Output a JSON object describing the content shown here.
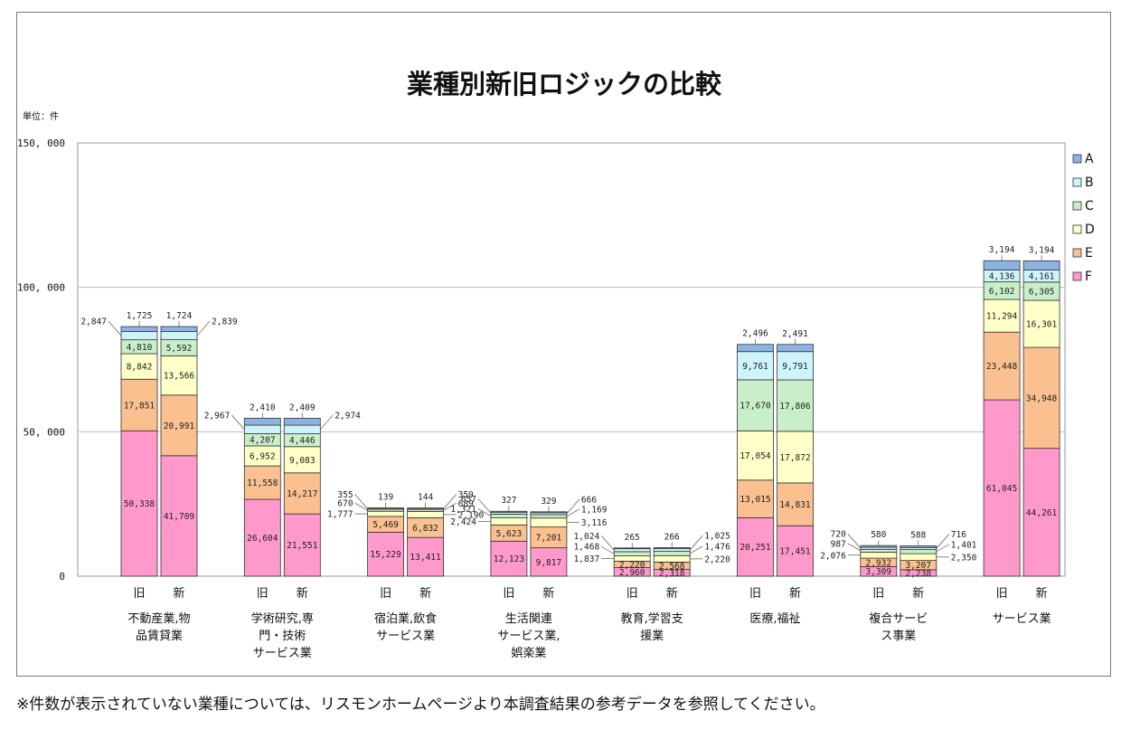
{
  "chart_data": {
    "type": "bar",
    "stacked": true,
    "title": "業種別新旧ロジックの比較",
    "unit_label": "単位：件",
    "ylim": [
      0,
      150000
    ],
    "yticks": [
      "0",
      "50, 000",
      "100, 000",
      "150, 000"
    ],
    "ytick_values": [
      0,
      50000,
      100000,
      150000
    ],
    "grid": true,
    "legend_position": "right",
    "stack_order": [
      "F",
      "E",
      "D",
      "C",
      "B",
      "A"
    ],
    "legend": [
      "A",
      "B",
      "C",
      "D",
      "E",
      "F"
    ],
    "colors": {
      "A": "#8db3e2",
      "B": "#cdf3fb",
      "C": "#c8efc8",
      "D": "#ffffc8",
      "E": "#fac090",
      "F": "#ff99cc"
    },
    "bar_names": [
      "旧",
      "新"
    ],
    "categories": [
      {
        "label_lines": [
          "不動産業,物",
          "品賃貸業"
        ],
        "bars": [
          {
            "values": {
              "F": 50338,
              "E": 17851,
              "D": 8842,
              "C": 4810,
              "B": 2847,
              "A": 1725
            },
            "labels": {
              "F": "50,338",
              "E": "17,851",
              "D": "8,842",
              "C": "4,810",
              "B": "2,847",
              "A": "1,725"
            }
          },
          {
            "values": {
              "F": 41709,
              "E": 20991,
              "D": 13566,
              "C": 5592,
              "B": 2839,
              "A": 1724
            },
            "labels": {
              "F": "41,709",
              "E": "20,991",
              "D": "13,566",
              "C": "5,592",
              "B": "2,839",
              "A": "1,724"
            }
          }
        ]
      },
      {
        "label_lines": [
          "学術研究,専",
          "門・技術",
          "サービス業"
        ],
        "bars": [
          {
            "values": {
              "F": 26604,
              "E": 11558,
              "D": 6952,
              "C": 4207,
              "B": 2967,
              "A": 2410
            },
            "labels": {
              "F": "26,604",
              "E": "11,558",
              "D": "6,952",
              "C": "4,207",
              "B": "2,967",
              "A": "2,410"
            }
          },
          {
            "values": {
              "F": 21551,
              "E": 14217,
              "D": 9083,
              "C": 4446,
              "B": 2974,
              "A": 2409
            },
            "labels": {
              "F": "21,551",
              "E": "14,217",
              "D": "9,083",
              "C": "4,446",
              "B": "2,974",
              "A": "2,409"
            }
          }
        ]
      },
      {
        "label_lines": [
          "宿泊業,飲食",
          "サービス業"
        ],
        "bars": [
          {
            "values": {
              "F": 15229,
              "E": 5469,
              "D": 1777,
              "C": 670,
              "B": 355,
              "A": 139
            },
            "labels": {
              "F": "15,229",
              "E": "5,469",
              "D": "1,777",
              "C": "670",
              "B": "355",
              "A": "139"
            }
          },
          {
            "values": {
              "F": 13411,
              "E": 6832,
              "D": 2190,
              "C": 689,
              "B": 359,
              "A": 144
            },
            "labels": {
              "F": "13,411",
              "E": "6,832",
              "D": "2,190",
              "C": "689",
              "B": "359",
              "A": "144"
            }
          }
        ]
      },
      {
        "label_lines": [
          "生活関連",
          "サービス業,",
          "娯楽業"
        ],
        "bars": [
          {
            "values": {
              "F": 12123,
              "E": 5623,
              "D": 2424,
              "C": 1321,
              "B": 657,
              "A": 327
            },
            "labels": {
              "F": "12,123",
              "E": "5,623",
              "D": "2,424",
              "C": "1,321",
              "B": "657",
              "A": "327"
            }
          },
          {
            "values": {
              "F": 9817,
              "E": 7201,
              "D": 3116,
              "C": 1169,
              "B": 666,
              "A": 329
            },
            "labels": {
              "F": "9,817",
              "E": "7,201",
              "D": "3,116",
              "C": "1,169",
              "B": "666",
              "A": "329"
            }
          }
        ]
      },
      {
        "label_lines": [
          "教育,学習支",
          "援業"
        ],
        "bars": [
          {
            "values": {
              "F": 2960,
              "E": 2220,
              "D": 1837,
              "C": 1468,
              "B": 1024,
              "A": 265
            },
            "labels": {
              "F": "2,960",
              "E": "2,220",
              "D": "1,837",
              "C": "1,468",
              "B": "1,024",
              "A": "265"
            }
          },
          {
            "values": {
              "F": 2318,
              "E": 2568,
              "D": 2220,
              "C": 1476,
              "B": 1025,
              "A": 266
            },
            "labels": {
              "F": "2,318",
              "E": "2,568",
              "D": "2,220",
              "C": "1,476",
              "B": "1,025",
              "A": "266"
            }
          }
        ]
      },
      {
        "label_lines": [
          "医療,福祉"
        ],
        "bars": [
          {
            "values": {
              "F": 20251,
              "E": 13015,
              "D": 17054,
              "C": 17670,
              "B": 9761,
              "A": 2496
            },
            "labels": {
              "F": "20,251",
              "E": "13,015",
              "D": "17,054",
              "C": "17,670",
              "B": "9,761",
              "A": "2,496"
            }
          },
          {
            "values": {
              "F": 17451,
              "E": 14831,
              "D": 17872,
              "C": 17806,
              "B": 9791,
              "A": 2491
            },
            "labels": {
              "F": "17,451",
              "E": "14,831",
              "D": "17,872",
              "C": "17,806",
              "B": "9,791",
              "A": "2,491"
            }
          }
        ]
      },
      {
        "label_lines": [
          "複合サービ",
          "ス事業"
        ],
        "bars": [
          {
            "values": {
              "F": 3309,
              "E": 2932,
              "D": 2076,
              "C": 987,
              "B": 720,
              "A": 580
            },
            "labels": {
              "F": "3,309",
              "E": "2,932",
              "D": "2,076",
              "C": "987",
              "B": "720",
              "A": "580"
            }
          },
          {
            "values": {
              "F": 2238,
              "E": 3207,
              "D": 2350,
              "C": 1401,
              "B": 716,
              "A": 588
            },
            "labels": {
              "F": "2,238",
              "E": "3,207",
              "D": "2,350",
              "C": "1,401",
              "B": "716",
              "A": "588"
            }
          }
        ]
      },
      {
        "label_lines": [
          "サービス業"
        ],
        "bars": [
          {
            "values": {
              "F": 61045,
              "E": 23448,
              "D": 11294,
              "C": 6102,
              "B": 4136,
              "A": 3194
            },
            "labels": {
              "F": "61,045",
              "E": "23,448",
              "D": "11,294",
              "C": "6,102",
              "B": "4,136",
              "A": "3,194"
            }
          },
          {
            "values": {
              "F": 44261,
              "E": 34948,
              "D": 16301,
              "C": 6305,
              "B": 4161,
              "A": 3194
            },
            "labels": {
              "F": "44,261",
              "E": "34,948",
              "D": "16,301",
              "C": "6,305",
              "B": "4,161",
              "A": "3,194"
            }
          }
        ]
      }
    ]
  },
  "footnote": "※件数が表示されていない業種については、リスモンホームページより本調査結果の参考データを参照してください。"
}
